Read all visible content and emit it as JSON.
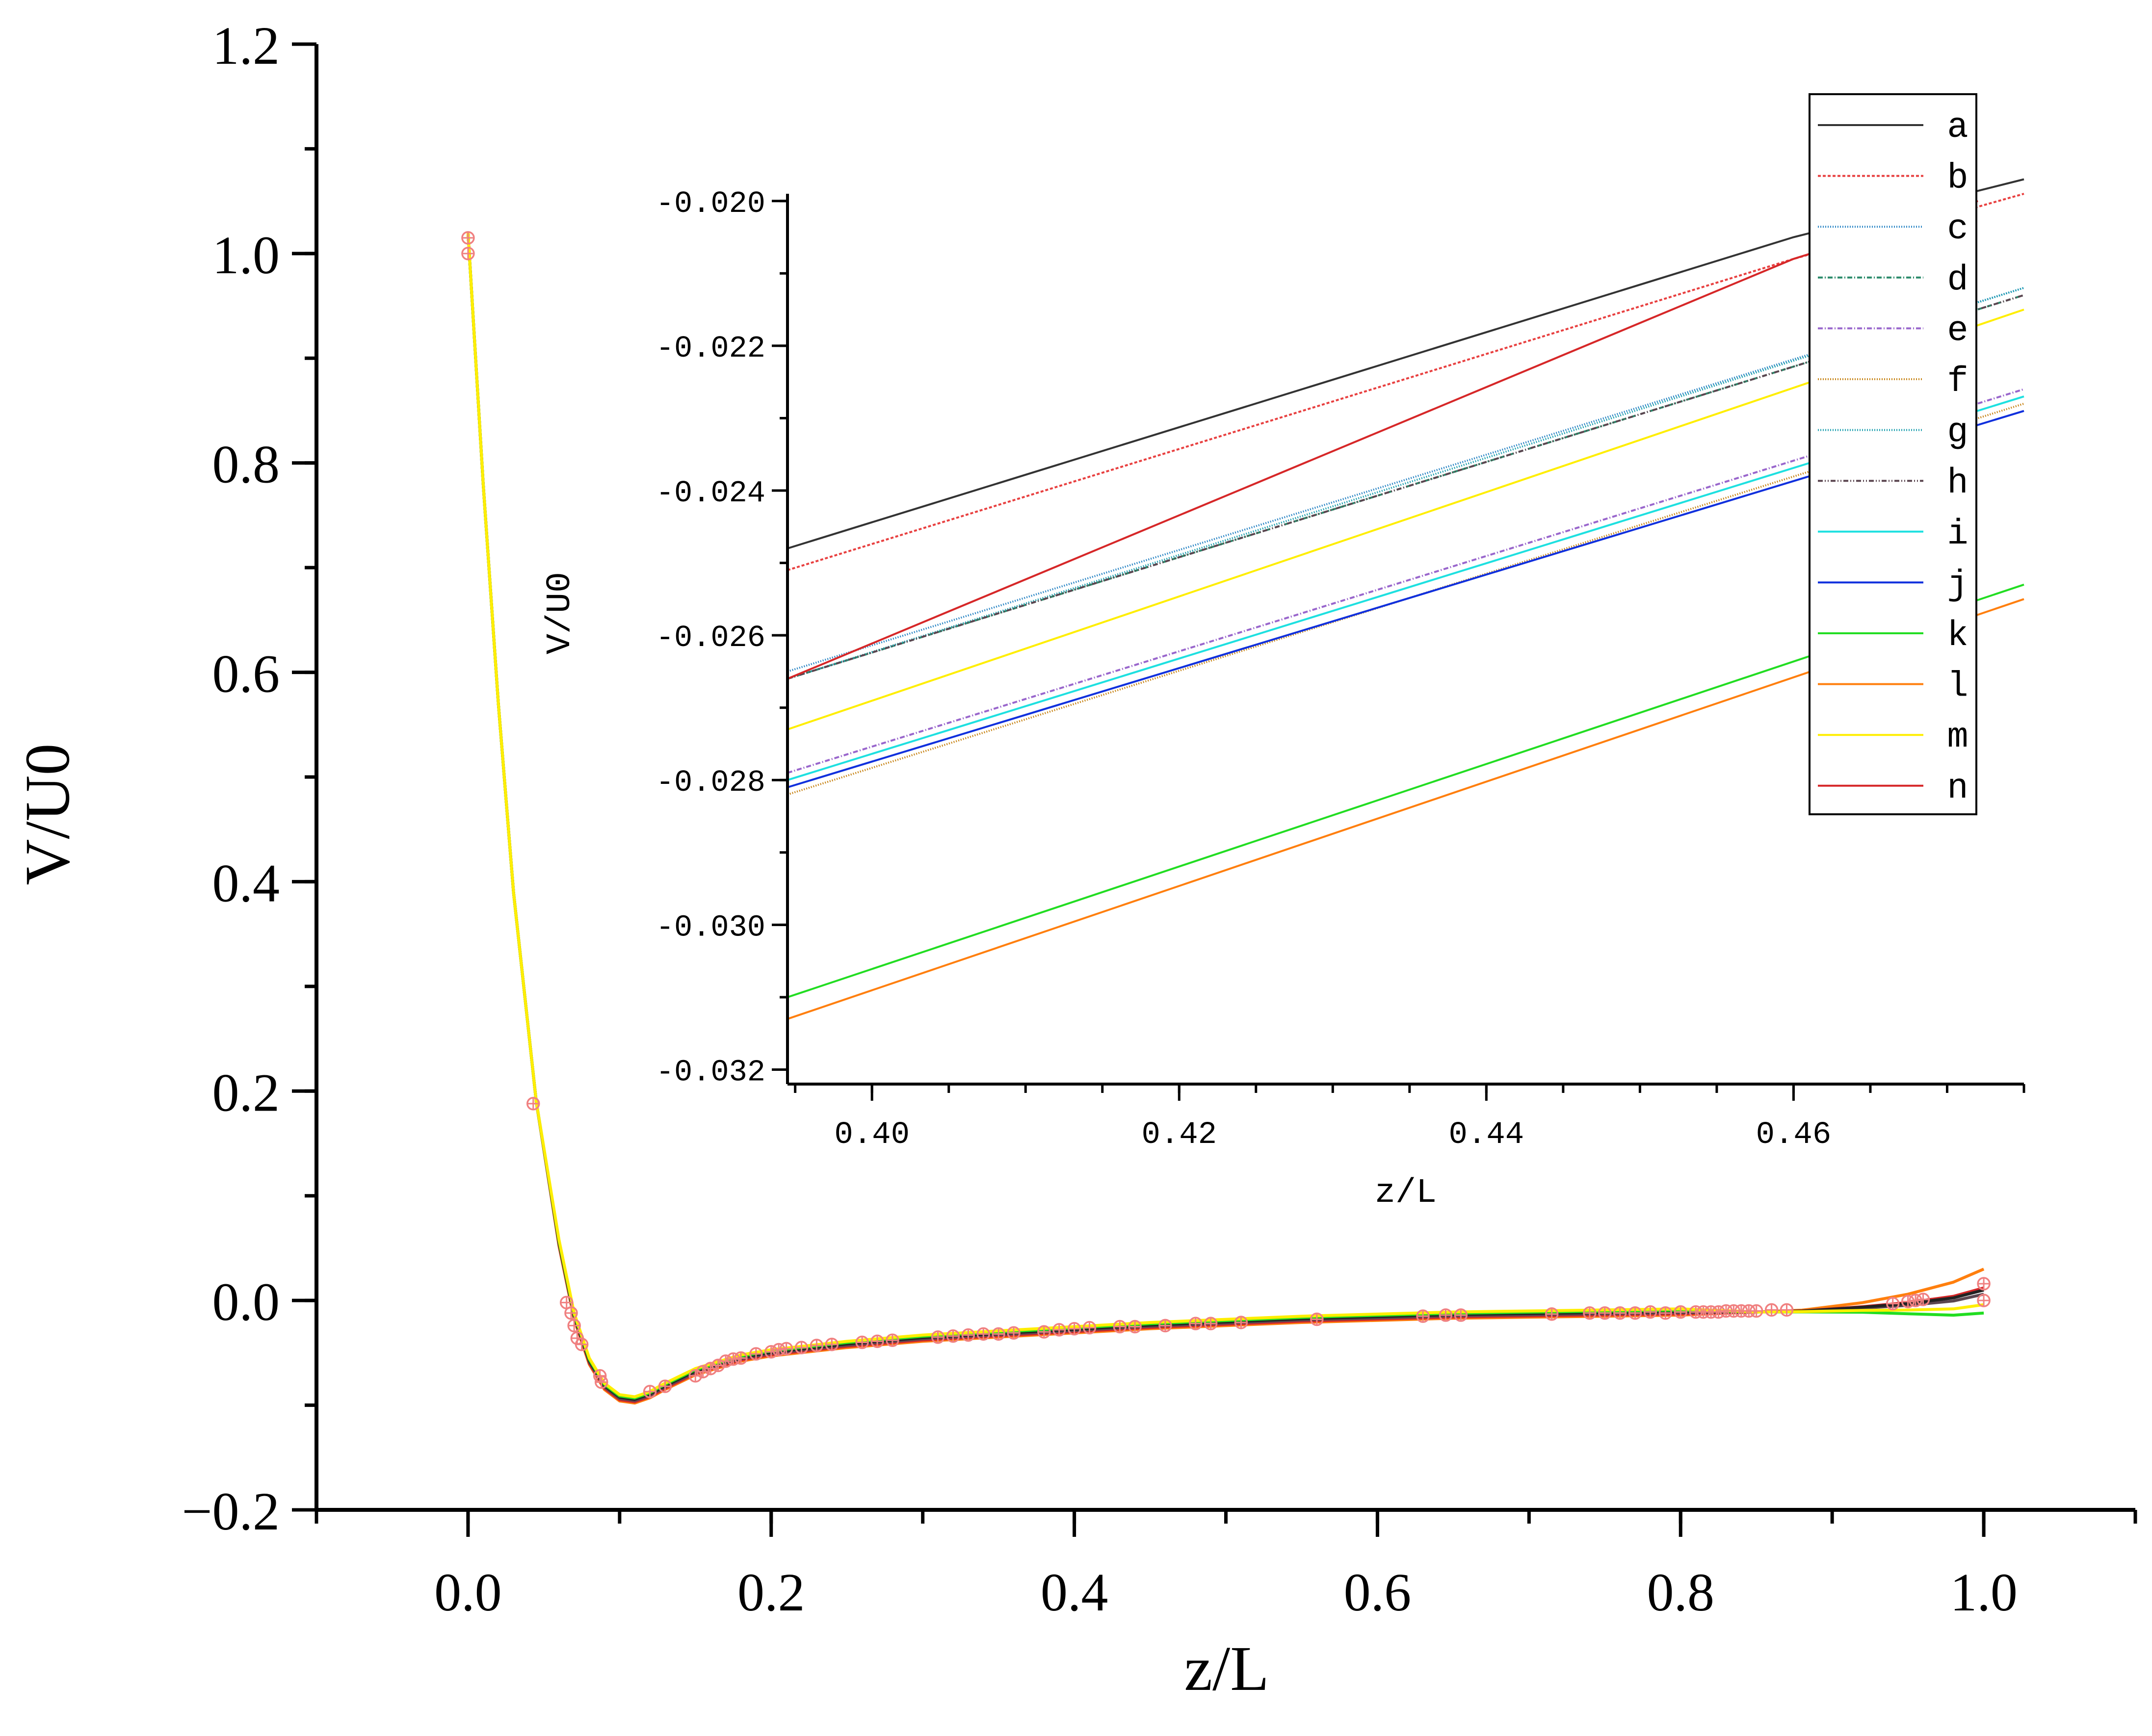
{
  "chart_data": [
    {
      "id": "main",
      "type": "line",
      "xlabel": "z/L",
      "ylabel": "V/U0",
      "xlim": [
        -0.1,
        1.1
      ],
      "ylim": [
        -0.2,
        1.2
      ],
      "xticks": [
        "0.0",
        "0.2",
        "0.4",
        "0.6",
        "0.8",
        "1.0"
      ],
      "xtick_values": [
        0.0,
        0.2,
        0.4,
        0.6,
        0.8,
        1.0
      ],
      "yticks": [
        "−0.2",
        "0.0",
        "0.2",
        "0.4",
        "0.6",
        "0.8",
        "1.0",
        "1.2"
      ],
      "ytick_values": [
        -0.2,
        0.0,
        0.2,
        0.4,
        0.6,
        0.8,
        1.0,
        1.2
      ],
      "curve": {
        "x": [
          0.0,
          0.01,
          0.02,
          0.03,
          0.045,
          0.06,
          0.07,
          0.08,
          0.09,
          0.1,
          0.11,
          0.12,
          0.13,
          0.15,
          0.18,
          0.2,
          0.25,
          0.3,
          0.35,
          0.4,
          0.45,
          0.5,
          0.55,
          0.6,
          0.65,
          0.7,
          0.75,
          0.8,
          0.85,
          0.88,
          0.92,
          0.95,
          0.98,
          1.0
        ],
        "y": [
          1.02,
          0.78,
          0.57,
          0.39,
          0.19,
          0.055,
          -0.015,
          -0.058,
          -0.082,
          -0.093,
          -0.095,
          -0.09,
          -0.082,
          -0.068,
          -0.055,
          -0.05,
          -0.042,
          -0.036,
          -0.032,
          -0.028,
          -0.024,
          -0.021,
          -0.018,
          -0.016,
          -0.014,
          -0.013,
          -0.012,
          -0.011,
          -0.011,
          -0.01,
          -0.006,
          -0.002,
          0.004,
          0.012
        ]
      },
      "series_ends": [
        {
          "name": "l",
          "color": "#ff7f0e",
          "end": 0.03
        },
        {
          "name": "n",
          "color": "#d62728",
          "end": 0.012
        },
        {
          "name": "h",
          "color": "#5b4650",
          "end": 0.006
        },
        {
          "name": "a",
          "color": "#222222",
          "end": 0.01
        },
        {
          "name": "k",
          "color": "#22dd22",
          "end": -0.012
        },
        {
          "name": "m",
          "color": "#ffee00",
          "end": -0.004
        }
      ],
      "markers": {
        "color": "#f08080",
        "points": [
          [
            0.0,
            1.015
          ],
          [
            0.0,
            1.0
          ],
          [
            0.043,
            0.188
          ],
          [
            0.065,
            -0.002
          ],
          [
            0.068,
            -0.012
          ],
          [
            0.07,
            -0.024
          ],
          [
            0.072,
            -0.036
          ],
          [
            0.075,
            -0.042
          ],
          [
            0.087,
            -0.072
          ],
          [
            0.088,
            -0.078
          ],
          [
            0.12,
            -0.087
          ],
          [
            0.13,
            -0.082
          ],
          [
            0.15,
            -0.072
          ],
          [
            0.155,
            -0.068
          ],
          [
            0.16,
            -0.065
          ],
          [
            0.165,
            -0.062
          ],
          [
            0.17,
            -0.058
          ],
          [
            0.175,
            -0.056
          ],
          [
            0.18,
            -0.055
          ],
          [
            0.19,
            -0.051
          ],
          [
            0.2,
            -0.049
          ],
          [
            0.205,
            -0.047
          ],
          [
            0.21,
            -0.046
          ],
          [
            0.22,
            -0.045
          ],
          [
            0.23,
            -0.043
          ],
          [
            0.24,
            -0.042
          ],
          [
            0.26,
            -0.04
          ],
          [
            0.27,
            -0.039
          ],
          [
            0.28,
            -0.038
          ],
          [
            0.31,
            -0.035
          ],
          [
            0.32,
            -0.034
          ],
          [
            0.33,
            -0.033
          ],
          [
            0.34,
            -0.032
          ],
          [
            0.35,
            -0.032
          ],
          [
            0.36,
            -0.031
          ],
          [
            0.38,
            -0.03
          ],
          [
            0.39,
            -0.028
          ],
          [
            0.4,
            -0.027
          ],
          [
            0.41,
            -0.026
          ],
          [
            0.43,
            -0.025
          ],
          [
            0.44,
            -0.025
          ],
          [
            0.46,
            -0.024
          ],
          [
            0.48,
            -0.022
          ],
          [
            0.49,
            -0.022
          ],
          [
            0.51,
            -0.021
          ],
          [
            0.56,
            -0.018
          ],
          [
            0.63,
            -0.015
          ],
          [
            0.645,
            -0.014
          ],
          [
            0.655,
            -0.014
          ],
          [
            0.715,
            -0.013
          ],
          [
            0.74,
            -0.012
          ],
          [
            0.75,
            -0.012
          ],
          [
            0.76,
            -0.012
          ],
          [
            0.77,
            -0.012
          ],
          [
            0.78,
            -0.011
          ],
          [
            0.79,
            -0.012
          ],
          [
            0.8,
            -0.011
          ],
          [
            0.81,
            -0.011
          ],
          [
            0.815,
            -0.011
          ],
          [
            0.82,
            -0.011
          ],
          [
            0.825,
            -0.011
          ],
          [
            0.83,
            -0.01
          ],
          [
            0.835,
            -0.01
          ],
          [
            0.84,
            -0.01
          ],
          [
            0.845,
            -0.01
          ],
          [
            0.85,
            -0.01
          ],
          [
            0.86,
            -0.009
          ],
          [
            0.87,
            -0.009
          ],
          [
            0.94,
            -0.003
          ],
          [
            0.95,
            -0.001
          ],
          [
            0.955,
            0.0
          ],
          [
            0.96,
            0.001
          ],
          [
            1.0,
            0.016
          ],
          [
            1.0,
            0.0
          ]
        ]
      }
    },
    {
      "id": "inset",
      "type": "line",
      "xlabel": "z/L",
      "ylabel": "V/U0",
      "xlim": [
        0.3945,
        0.475
      ],
      "ylim": [
        -0.0322,
        -0.0199
      ],
      "xticks": [
        "0.40",
        "0.42",
        "0.44",
        "0.46"
      ],
      "xtick_values": [
        0.4,
        0.42,
        0.44,
        0.46
      ],
      "yticks": [
        "-0.020",
        "-0.022",
        "-0.024",
        "-0.026",
        "-0.028",
        "-0.030",
        "-0.032"
      ],
      "ytick_values": [
        -0.02,
        -0.022,
        -0.024,
        -0.026,
        -0.028,
        -0.03,
        -0.032
      ],
      "series": [
        {
          "name": "a",
          "color": "#333333",
          "dash": "solid",
          "x": [
            0.3945,
            0.46,
            0.475
          ],
          "y": [
            -0.0248,
            -0.0205,
            -0.0197
          ]
        },
        {
          "name": "b",
          "color": "#e84040",
          "dash": "6,4",
          "x": [
            0.3945,
            0.46,
            0.475
          ],
          "y": [
            -0.0251,
            -0.0208,
            -0.0199
          ]
        },
        {
          "name": "c",
          "color": "#2b86c5",
          "dash": "2,3",
          "x": [
            0.3945,
            0.475
          ],
          "y": [
            -0.0265,
            -0.0212
          ]
        },
        {
          "name": "d",
          "color": "#2a8a6a",
          "dash": "10,4,2,4",
          "x": [
            0.3945,
            0.475
          ],
          "y": [
            -0.0266,
            -0.0213
          ]
        },
        {
          "name": "e",
          "color": "#9966cc",
          "dash": "10,4,2,4",
          "x": [
            0.3945,
            0.475
          ],
          "y": [
            -0.0279,
            -0.0226
          ]
        },
        {
          "name": "f",
          "color": "#c8861a",
          "dash": "2,3",
          "x": [
            0.3945,
            0.475
          ],
          "y": [
            -0.0282,
            -0.0228
          ]
        },
        {
          "name": "g",
          "color": "#20a0b0",
          "dash": "2,3",
          "x": [
            0.3945,
            0.475
          ],
          "y": [
            -0.0266,
            -0.0212
          ]
        },
        {
          "name": "h",
          "color": "#5b4650",
          "dash": "10,4,2,4,2,4",
          "x": [
            0.3945,
            0.475
          ],
          "y": [
            -0.0266,
            -0.0213
          ]
        },
        {
          "name": "i",
          "color": "#1ee0e0",
          "dash": "solid",
          "x": [
            0.3945,
            0.475
          ],
          "y": [
            -0.028,
            -0.0227
          ]
        },
        {
          "name": "j",
          "color": "#1030dd",
          "dash": "solid",
          "x": [
            0.3945,
            0.475
          ],
          "y": [
            -0.0281,
            -0.0229
          ]
        },
        {
          "name": "k",
          "color": "#22dd22",
          "dash": "solid",
          "x": [
            0.3945,
            0.475
          ],
          "y": [
            -0.031,
            -0.0253
          ]
        },
        {
          "name": "l",
          "color": "#ff7f0e",
          "dash": "solid",
          "x": [
            0.3945,
            0.475
          ],
          "y": [
            -0.0313,
            -0.0255
          ]
        },
        {
          "name": "m",
          "color": "#ffee00",
          "dash": "solid",
          "x": [
            0.3945,
            0.475
          ],
          "y": [
            -0.0273,
            -0.0215
          ]
        },
        {
          "name": "n",
          "color": "#d62728",
          "dash": "solid",
          "x": [
            0.3945,
            0.46,
            0.472
          ],
          "y": [
            -0.0266,
            -0.0208,
            -0.02
          ]
        }
      ],
      "legend": [
        "a",
        "b",
        "c",
        "d",
        "e",
        "f",
        "g",
        "h",
        "i",
        "j",
        "k",
        "l",
        "m",
        "n"
      ],
      "legend_position": "top-right"
    }
  ]
}
